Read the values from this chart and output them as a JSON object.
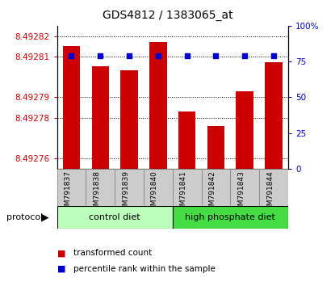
{
  "title": "GDS4812 / 1383065_at",
  "samples": [
    "GSM791837",
    "GSM791838",
    "GSM791839",
    "GSM791840",
    "GSM791841",
    "GSM791842",
    "GSM791843",
    "GSM791844"
  ],
  "transformed_counts": [
    8.492815,
    8.492805,
    8.492803,
    8.492817,
    8.492783,
    8.492776,
    8.492793,
    8.492807
  ],
  "percentile_ranks": [
    79,
    79,
    79,
    79,
    79,
    79,
    79,
    79
  ],
  "ylim_left": [
    8.492755,
    8.492825
  ],
  "ylim_right": [
    0,
    100
  ],
  "yticks_left": [
    8.49276,
    8.49278,
    8.49279,
    8.49281,
    8.49282
  ],
  "ytick_labels_left": [
    "8.49276",
    "8.49278",
    "8.49279",
    "8.49281",
    "8.49282"
  ],
  "yticks_right": [
    0,
    25,
    50,
    75,
    100
  ],
  "ytick_labels_right": [
    "0",
    "25",
    "50",
    "75",
    "100%"
  ],
  "groups": [
    {
      "label": "control diet",
      "indices": [
        0,
        1,
        2,
        3
      ],
      "color": "#bbffbb"
    },
    {
      "label": "high phosphate diet",
      "indices": [
        4,
        5,
        6,
        7
      ],
      "color": "#44dd44"
    }
  ],
  "protocol_label": "protocol",
  "bar_color": "#cc0000",
  "dot_color": "#0000cc",
  "bar_width": 0.6,
  "base_value": 8.492755,
  "tick_label_color_left": "#cc0000",
  "tick_label_color_right": "#0000cc",
  "grid_color": "#000000",
  "sample_box_color": "#cccccc",
  "sample_box_edge": "#888888",
  "title_fontsize": 10
}
